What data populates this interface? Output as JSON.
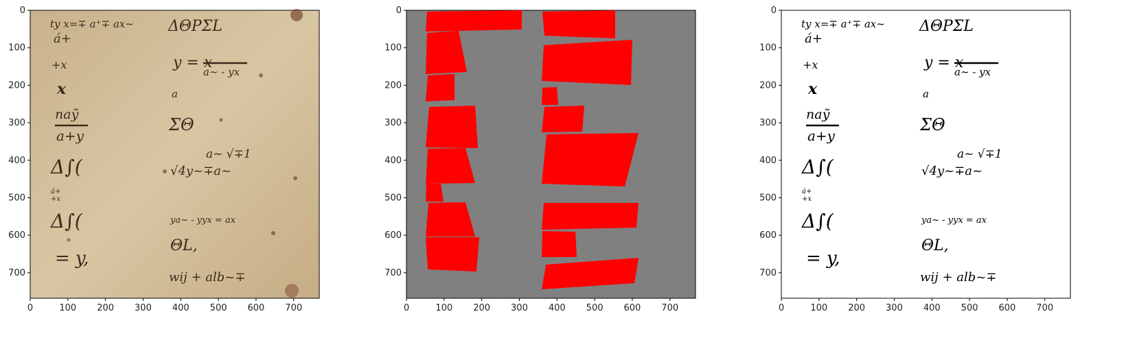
{
  "figure": {
    "background": "#ffffff",
    "panels": [
      {
        "name": "manuscript-photo",
        "description_label": "",
        "x_ticks": [
          "0",
          "100",
          "200",
          "300",
          "400",
          "500",
          "600",
          "700"
        ],
        "y_ticks": [
          "0",
          "100",
          "200",
          "300",
          "400",
          "500",
          "600",
          "700"
        ],
        "x_range": [
          0,
          768
        ],
        "y_range": [
          768,
          0
        ],
        "parchment_color": "#d6c3a0",
        "ink_color": "#3a2a1a"
      },
      {
        "name": "region-mask",
        "description_label": "",
        "x_ticks": [
          "0",
          "100",
          "200",
          "300",
          "400",
          "500",
          "600",
          "700"
        ],
        "y_ticks": [
          "0",
          "100",
          "200",
          "300",
          "400",
          "500",
          "600",
          "700"
        ],
        "x_range": [
          0,
          768
        ],
        "y_range": [
          768,
          0
        ],
        "background_color": "#808080",
        "region_color": "#ff0000"
      },
      {
        "name": "binarized-manuscript",
        "description_label": "",
        "x_ticks": [
          "0",
          "100",
          "200",
          "300",
          "400",
          "500",
          "600",
          "700"
        ],
        "y_ticks": [
          "0",
          "100",
          "200",
          "300",
          "400",
          "500",
          "600",
          "700"
        ],
        "x_range": [
          0,
          768
        ],
        "y_range": [
          768,
          0
        ],
        "background_color": "#ffffff",
        "ink_color": "#000000"
      }
    ],
    "manuscript_lines": {
      "left": [
        "ty x=∓ a⁺∓ ax~",
        "á+",
        "+x",
        "x",
        "naỹ",
        "a+y",
        "Δ∫(",
        "á+",
        "+x",
        "Δ∫(",
        "= y,"
      ],
      "right": [
        "ΔΘPΣL",
        "y = x",
        "a~ - yx",
        "a",
        "ΣΘ",
        "a~ √∓1",
        "√4y~∓a~",
        "ya~ - yyx = ax",
        "ΘL,",
        "wij + alb~∓"
      ]
    }
  }
}
